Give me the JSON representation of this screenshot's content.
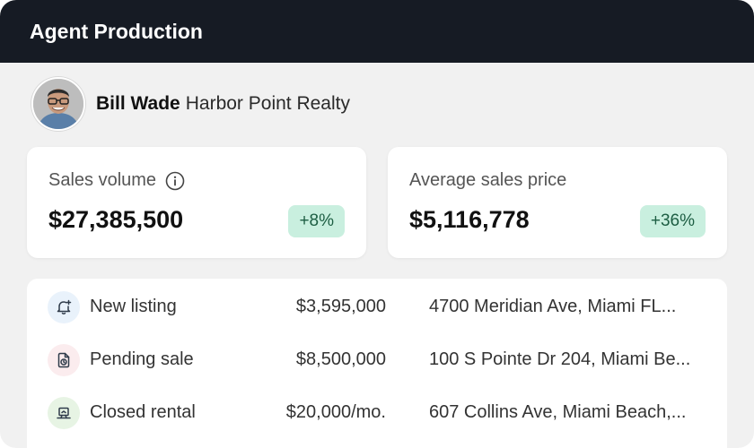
{
  "header": {
    "title": "Agent Production"
  },
  "agent": {
    "name": "Bill Wade",
    "company": "Harbor Point Realty"
  },
  "stats": [
    {
      "label": "Sales volume",
      "value": "$27,385,500",
      "change": "+8%",
      "info_icon": "info-icon"
    },
    {
      "label": "Average sales price",
      "value": "$5,116,778",
      "change": "+36%"
    }
  ],
  "activity": [
    {
      "status": "New listing",
      "price": "$3,595,000",
      "address": "4700 Meridian Ave, Miami FL...",
      "icon": "bell-plus-icon",
      "icon_bg": "#e9f2fb",
      "icon_color": "#2f3b4a"
    },
    {
      "status": "Pending sale",
      "price": "$8,500,000",
      "address": "100 S Pointe Dr 204, Miami Be...",
      "icon": "document-clock-icon",
      "icon_bg": "#fbecee",
      "icon_color": "#2f3b4a"
    },
    {
      "status": "Closed rental",
      "price": "$20,000/mo.",
      "address": "607 Collins Ave, Miami Beach,...",
      "icon": "laptop-icon",
      "icon_bg": "#e7f4e4",
      "icon_color": "#2f3b4a"
    }
  ],
  "colors": {
    "header_bg": "#161b24",
    "badge_bg": "#c9efdf",
    "badge_text": "#1d5e43",
    "page_bg": "#f1f1f1"
  }
}
